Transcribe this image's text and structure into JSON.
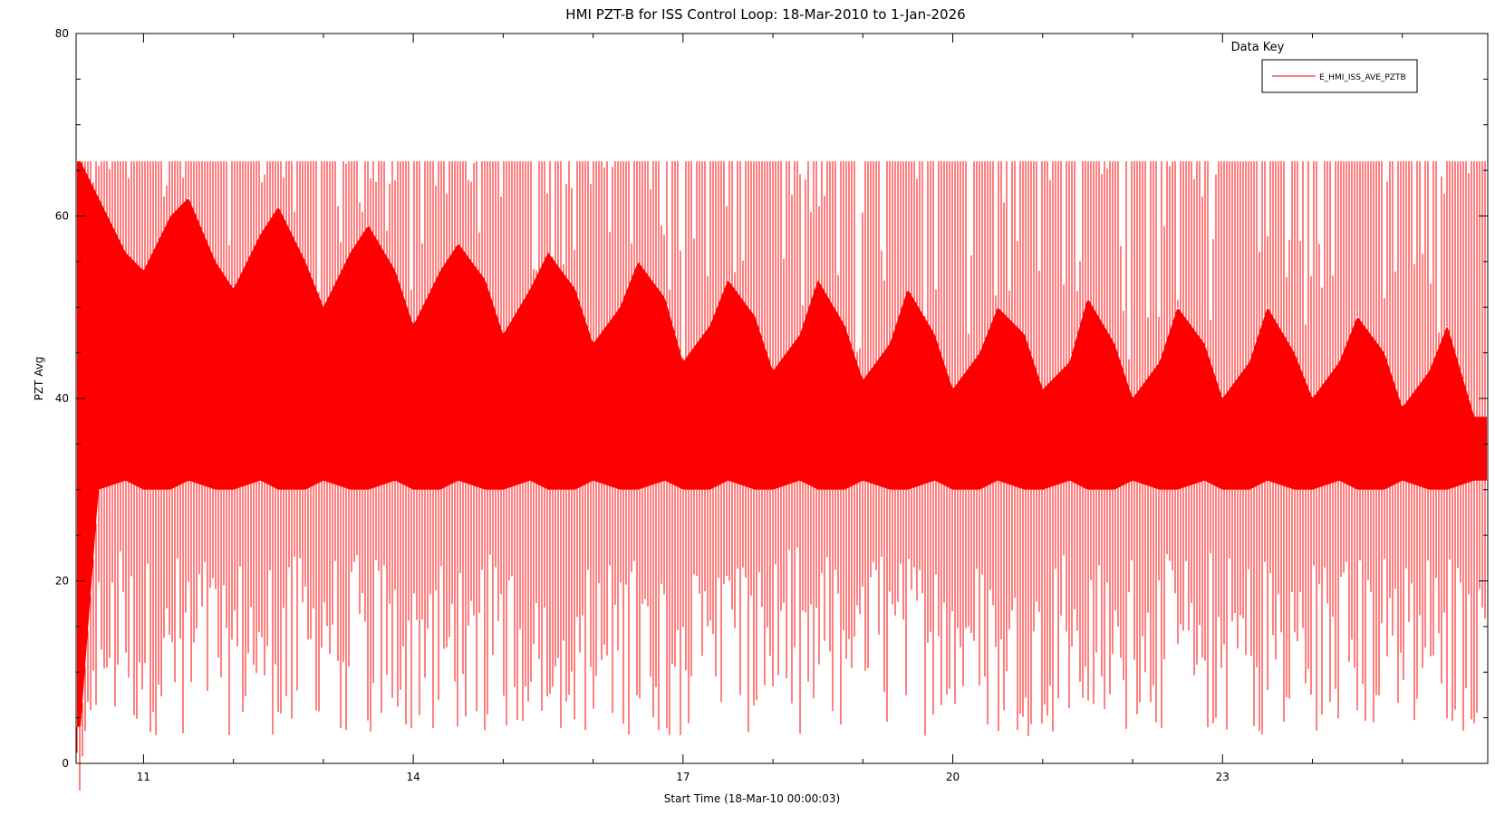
{
  "chart_data": {
    "type": "line",
    "title": "HMI PZT-B for ISS Control Loop: 18-Mar-2010 to 1-Jan-2026",
    "xlabel": "Start Time (18-Mar-10 00:00:03)",
    "ylabel": "PZT Avg",
    "xlim": [
      10.25,
      25.95
    ],
    "ylim": [
      0,
      80
    ],
    "x_ticks": [
      11,
      14,
      17,
      20,
      23
    ],
    "x_tick_labels": [
      "11",
      "14",
      "17",
      "20",
      "23"
    ],
    "y_ticks": [
      0,
      20,
      40,
      60,
      80
    ],
    "y_tick_labels": [
      "0",
      "20",
      "40",
      "60",
      "80"
    ],
    "grid": false,
    "legend": {
      "title": "Data Key",
      "placement": "top-right"
    },
    "series": [
      {
        "name": "E_HMI_ISS_AVE_PZTB",
        "color": "#ff0000",
        "x": [
          10.3,
          10.5,
          10.8,
          11.0,
          11.3,
          11.5,
          11.8,
          12.0,
          12.3,
          12.5,
          12.8,
          13.0,
          13.3,
          13.5,
          13.8,
          14.0,
          14.3,
          14.5,
          14.8,
          15.0,
          15.3,
          15.5,
          15.8,
          16.0,
          16.3,
          16.5,
          16.8,
          17.0,
          17.3,
          17.5,
          17.8,
          18.0,
          18.3,
          18.5,
          18.8,
          19.0,
          19.3,
          19.5,
          19.8,
          20.0,
          20.3,
          20.5,
          20.8,
          21.0,
          21.3,
          21.5,
          21.8,
          22.0,
          22.3,
          22.5,
          22.8,
          23.0,
          23.3,
          23.5,
          23.8,
          24.0,
          24.3,
          24.5,
          24.8,
          25.0,
          25.3,
          25.5,
          25.8
        ],
        "upper": [
          66,
          62,
          56,
          54,
          60,
          62,
          55,
          52,
          58,
          61,
          55,
          50,
          56,
          59,
          54,
          48,
          54,
          57,
          53,
          47,
          52,
          56,
          52,
          46,
          50,
          55,
          51,
          44,
          48,
          53,
          49,
          43,
          47,
          53,
          48,
          42,
          46,
          52,
          47,
          41,
          45,
          50,
          47,
          41,
          44,
          51,
          46,
          40,
          44,
          50,
          46,
          40,
          44,
          50,
          45,
          40,
          44,
          49,
          45,
          39,
          43,
          48,
          38
        ],
        "lower": [
          4,
          30,
          31,
          30,
          30,
          31,
          30,
          30,
          31,
          30,
          30,
          31,
          30,
          30,
          31,
          30,
          30,
          31,
          30,
          30,
          31,
          30,
          30,
          31,
          30,
          30,
          31,
          30,
          30,
          31,
          30,
          30,
          31,
          30,
          30,
          31,
          30,
          30,
          31,
          30,
          30,
          31,
          30,
          30,
          31,
          30,
          30,
          31,
          30,
          30,
          31,
          30,
          30,
          31,
          30,
          30,
          31,
          30,
          30,
          31,
          30,
          30,
          31
        ],
        "spike_cap": 66
      }
    ]
  }
}
